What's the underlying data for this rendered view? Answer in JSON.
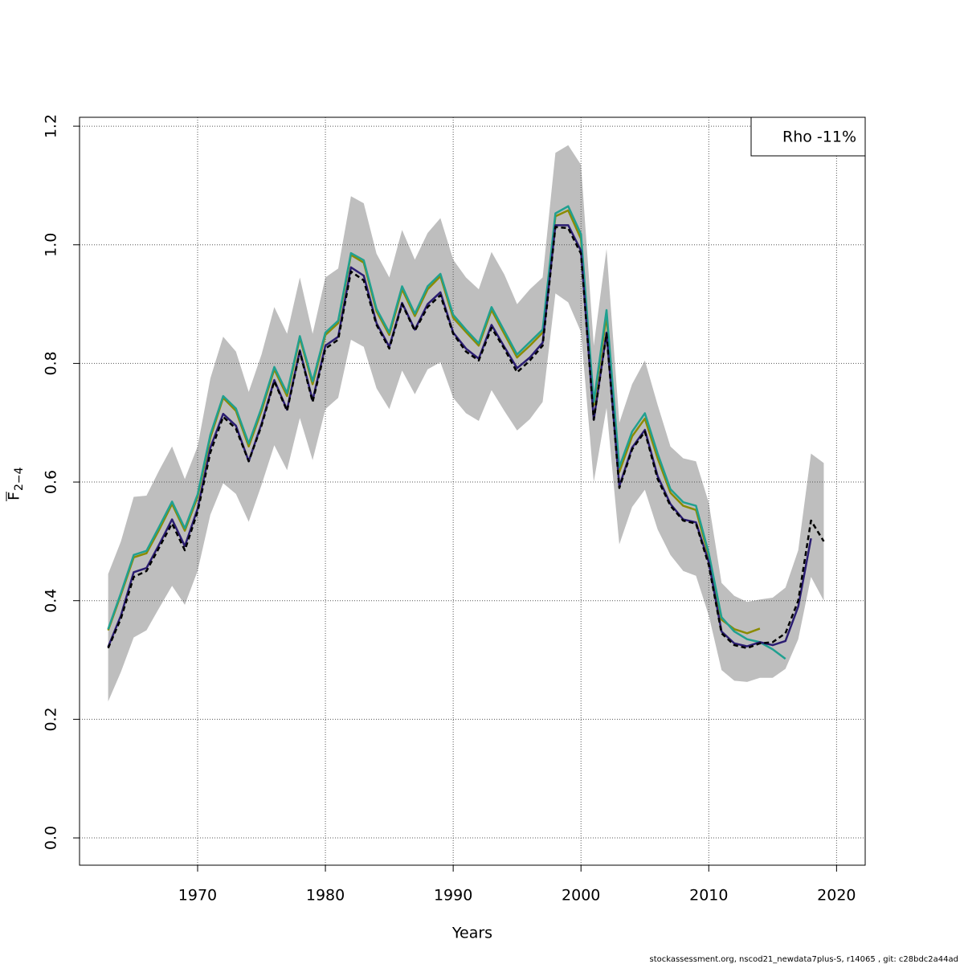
{
  "chart_data": {
    "type": "line",
    "x_label": "Years",
    "y_label": "F",
    "y_label_sub": "2−4",
    "legend_text": "Rho -11%",
    "legend_position": "top-right",
    "footer": "stockassessment.org, nscod21_newdata7plus-S, r14065 , git: c28bdc2a44ad",
    "grid": true,
    "xlim": [
      1960.76,
      2022.24
    ],
    "ylim": [
      -0.046,
      1.215
    ],
    "xticks": [
      1970,
      1980,
      1990,
      2000,
      2010,
      2020
    ],
    "yticks": [
      {
        "value": 0,
        "label": "0.0"
      },
      0.2,
      0.4,
      0.6,
      0.8,
      {
        "value": 1,
        "label": "1.0"
      },
      1.2
    ],
    "x": [
      1963,
      1964,
      1965,
      1966,
      1967,
      1968,
      1969,
      1970,
      1971,
      1972,
      1973,
      1974,
      1975,
      1976,
      1977,
      1978,
      1979,
      1980,
      1981,
      1982,
      1983,
      1984,
      1985,
      1986,
      1987,
      1988,
      1989,
      1990,
      1991,
      1992,
      1993,
      1994,
      1995,
      1996,
      1997,
      1998,
      1999,
      2000,
      2001,
      2002,
      2003,
      2004,
      2005,
      2006,
      2007,
      2008,
      2009,
      2010,
      2011,
      2012,
      2013,
      2014,
      2015,
      2016,
      2017,
      2018,
      2019
    ],
    "band": {
      "color": "#bebebe",
      "upper": [
        0.445,
        0.5,
        0.575,
        0.577,
        0.62,
        0.66,
        0.605,
        0.66,
        0.775,
        0.845,
        0.82,
        0.752,
        0.815,
        0.895,
        0.85,
        0.945,
        0.85,
        0.945,
        0.96,
        1.082,
        1.07,
        0.985,
        0.945,
        1.025,
        0.975,
        1.02,
        1.045,
        0.975,
        0.945,
        0.925,
        0.988,
        0.95,
        0.9,
        0.925,
        0.945,
        1.155,
        1.168,
        1.135,
        0.83,
        0.993,
        0.7,
        0.765,
        0.805,
        0.73,
        0.66,
        0.64,
        0.635,
        0.565,
        0.43,
        0.408,
        0.398,
        0.402,
        0.405,
        0.422,
        0.485,
        0.648,
        0.632
      ],
      "lower": [
        0.23,
        0.28,
        0.338,
        0.35,
        0.388,
        0.425,
        0.393,
        0.45,
        0.545,
        0.598,
        0.58,
        0.533,
        0.595,
        0.662,
        0.62,
        0.708,
        0.637,
        0.723,
        0.742,
        0.84,
        0.828,
        0.758,
        0.723,
        0.788,
        0.748,
        0.79,
        0.802,
        0.742,
        0.716,
        0.703,
        0.755,
        0.72,
        0.687,
        0.706,
        0.735,
        0.918,
        0.903,
        0.853,
        0.6,
        0.725,
        0.495,
        0.558,
        0.587,
        0.52,
        0.477,
        0.45,
        0.442,
        0.375,
        0.283,
        0.265,
        0.263,
        0.27,
        0.27,
        0.285,
        0.335,
        0.44,
        0.4
      ]
    },
    "series": [
      {
        "color": "#8b8b00",
        "values": [
          0.35,
          0.41,
          0.473,
          0.48,
          0.52,
          0.563,
          0.518,
          0.575,
          0.675,
          0.742,
          0.72,
          0.66,
          0.72,
          0.79,
          0.745,
          0.843,
          0.765,
          0.848,
          0.868,
          0.983,
          0.97,
          0.888,
          0.848,
          0.925,
          0.88,
          0.925,
          0.947,
          0.877,
          0.853,
          0.83,
          0.89,
          0.85,
          0.81,
          0.83,
          0.852,
          1.048,
          1.058,
          1.01,
          0.73,
          0.88,
          0.617,
          0.677,
          0.707,
          0.64,
          0.582,
          0.56,
          0.553,
          0.475,
          0.368,
          0.352,
          0.345,
          0.353,
          null,
          null,
          null,
          null,
          null
        ]
      },
      {
        "color": "#20a090",
        "values": [
          0.352,
          0.413,
          0.477,
          0.484,
          0.525,
          0.567,
          0.522,
          0.579,
          0.68,
          0.745,
          0.724,
          0.665,
          0.725,
          0.794,
          0.75,
          0.846,
          0.77,
          0.852,
          0.872,
          0.986,
          0.974,
          0.892,
          0.852,
          0.93,
          0.884,
          0.93,
          0.951,
          0.882,
          0.857,
          0.834,
          0.895,
          0.855,
          0.815,
          0.836,
          0.857,
          1.053,
          1.065,
          1.018,
          0.735,
          0.89,
          0.625,
          0.685,
          0.716,
          0.648,
          0.588,
          0.566,
          0.56,
          0.48,
          0.372,
          0.348,
          0.335,
          0.33,
          0.318,
          0.302,
          null,
          null,
          null
        ]
      },
      {
        "color": "#2b1d72",
        "values": [
          0.322,
          0.375,
          0.448,
          0.455,
          0.495,
          0.537,
          0.492,
          0.555,
          0.658,
          0.715,
          0.695,
          0.635,
          0.698,
          0.772,
          0.722,
          0.822,
          0.738,
          0.83,
          0.845,
          0.962,
          0.948,
          0.868,
          0.828,
          0.902,
          0.857,
          0.9,
          0.92,
          0.852,
          0.825,
          0.808,
          0.865,
          0.828,
          0.792,
          0.81,
          0.835,
          1.033,
          1.033,
          0.99,
          0.705,
          0.852,
          0.593,
          0.658,
          0.688,
          0.61,
          0.563,
          0.537,
          0.532,
          0.465,
          0.348,
          0.328,
          0.323,
          0.33,
          0.325,
          0.332,
          0.39,
          0.505,
          null
        ]
      },
      {
        "color": "#000000",
        "dashed": true,
        "values": [
          0.32,
          0.37,
          0.44,
          0.45,
          0.49,
          0.53,
          0.485,
          0.55,
          0.65,
          0.71,
          0.69,
          0.635,
          0.695,
          0.77,
          0.72,
          0.82,
          0.735,
          0.825,
          0.84,
          0.955,
          0.94,
          0.865,
          0.825,
          0.9,
          0.855,
          0.895,
          0.915,
          0.85,
          0.82,
          0.805,
          0.86,
          0.825,
          0.785,
          0.805,
          0.83,
          1.03,
          1.028,
          0.985,
          0.705,
          0.85,
          0.59,
          0.655,
          0.685,
          0.605,
          0.56,
          0.535,
          0.53,
          0.46,
          0.345,
          0.325,
          0.32,
          0.328,
          0.33,
          0.345,
          0.4,
          0.535,
          0.5
        ]
      }
    ]
  }
}
